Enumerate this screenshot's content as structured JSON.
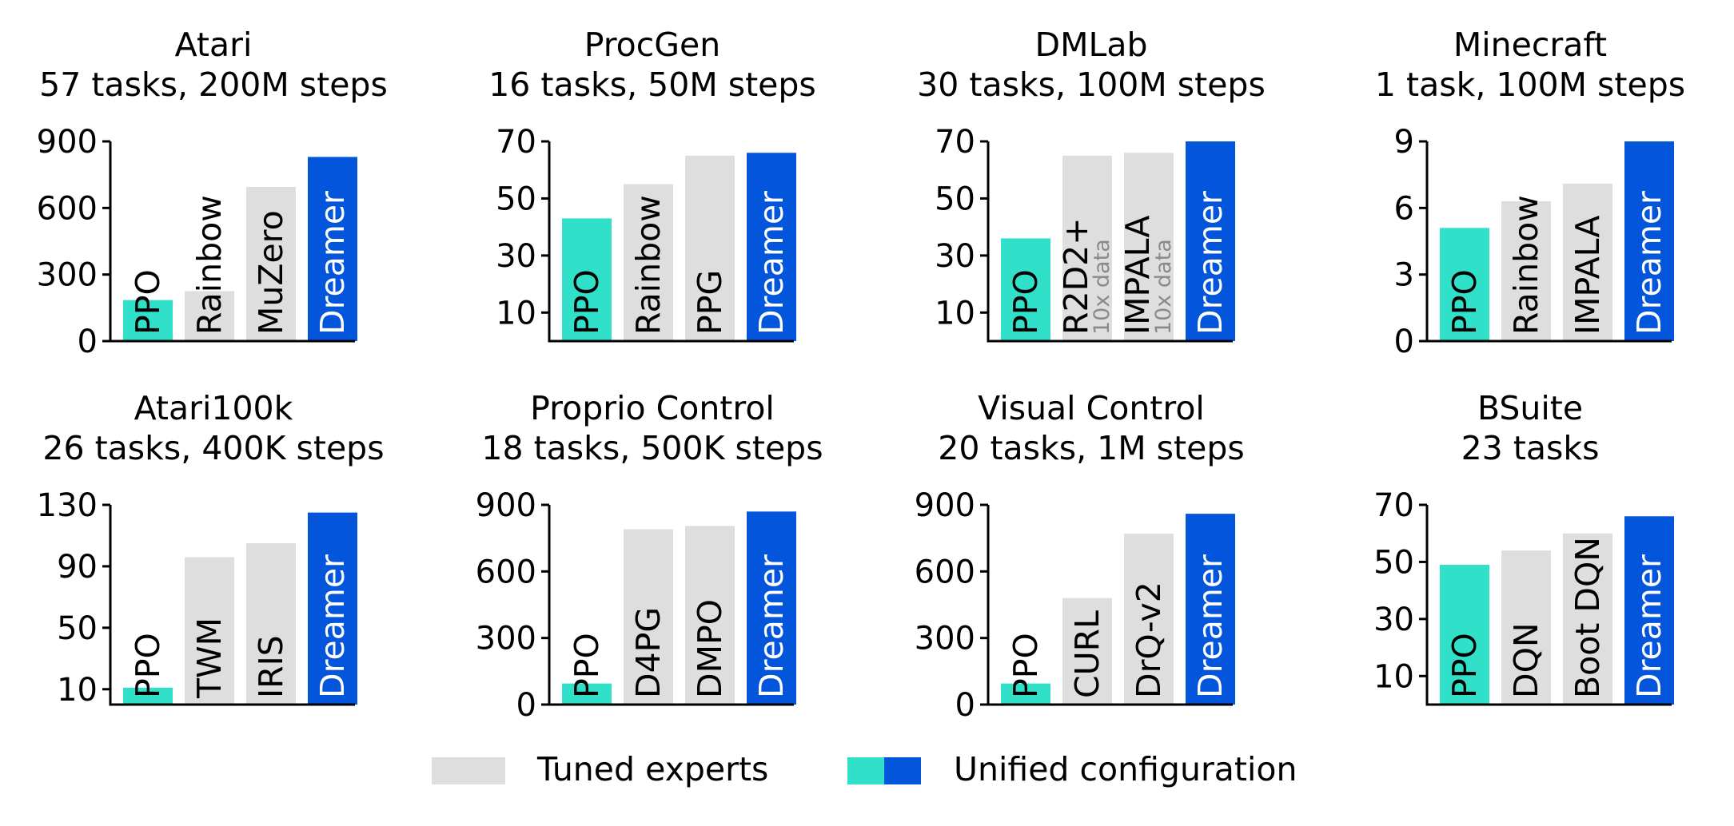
{
  "colors": {
    "ppo": "#30e0c8",
    "dreamer": "#0355db",
    "expert": "#dedede",
    "axis": "#000000",
    "label_dark": "#000000",
    "label_light": "#ffffff",
    "note": "#8a8a8a"
  },
  "chart_data": [
    {
      "type": "bar",
      "title": "Atari",
      "subtitle": "57 tasks, 200M steps",
      "ylim": [
        0,
        900
      ],
      "yticks": [
        0,
        300,
        600,
        900
      ],
      "categories": [
        "PPO",
        "Rainbow",
        "MuZero",
        "Dreamer"
      ],
      "values": [
        185,
        225,
        695,
        830
      ],
      "kinds": [
        "ppo",
        "expert",
        "expert",
        "dreamer"
      ],
      "notes": [
        "",
        "",
        "",
        ""
      ]
    },
    {
      "type": "bar",
      "title": "ProcGen",
      "subtitle": "16 tasks, 50M steps",
      "ylim": [
        0,
        70
      ],
      "yticks": [
        10,
        30,
        50,
        70
      ],
      "categories": [
        "PPO",
        "Rainbow",
        "PPG",
        "Dreamer"
      ],
      "values": [
        43,
        55,
        65,
        66
      ],
      "kinds": [
        "ppo",
        "expert",
        "expert",
        "dreamer"
      ],
      "notes": [
        "",
        "",
        "",
        ""
      ]
    },
    {
      "type": "bar",
      "title": "DMLab",
      "subtitle": "30 tasks, 100M steps",
      "ylim": [
        0,
        70
      ],
      "yticks": [
        10,
        30,
        50,
        70
      ],
      "categories": [
        "PPO",
        "R2D2+",
        "IMPALA",
        "Dreamer"
      ],
      "values": [
        36,
        65,
        66,
        70
      ],
      "kinds": [
        "ppo",
        "expert",
        "expert",
        "dreamer"
      ],
      "notes": [
        "",
        "10x data",
        "10x data",
        ""
      ]
    },
    {
      "type": "bar",
      "title": "Minecraft",
      "subtitle": "1 task, 100M steps",
      "ylim": [
        0,
        9
      ],
      "yticks": [
        0,
        3,
        6,
        9
      ],
      "categories": [
        "PPO",
        "Rainbow",
        "IMPALA",
        "Dreamer"
      ],
      "values": [
        5.1,
        6.3,
        7.1,
        9.0
      ],
      "kinds": [
        "ppo",
        "expert",
        "expert",
        "dreamer"
      ],
      "notes": [
        "",
        "",
        "",
        ""
      ]
    },
    {
      "type": "bar",
      "title": "Atari100k",
      "subtitle": "26 tasks, 400K steps",
      "ylim": [
        0,
        130
      ],
      "yticks": [
        10,
        50,
        90,
        130
      ],
      "categories": [
        "PPO",
        "TWM",
        "IRIS",
        "Dreamer"
      ],
      "values": [
        11,
        96,
        105,
        125
      ],
      "kinds": [
        "ppo",
        "expert",
        "expert",
        "dreamer"
      ],
      "notes": [
        "",
        "",
        "",
        ""
      ]
    },
    {
      "type": "bar",
      "title": "Proprio Control",
      "subtitle": "18 tasks, 500K steps",
      "ylim": [
        0,
        900
      ],
      "yticks": [
        0,
        300,
        600,
        900
      ],
      "categories": [
        "PPO",
        "D4PG",
        "DMPO",
        "Dreamer"
      ],
      "values": [
        95,
        790,
        805,
        870
      ],
      "kinds": [
        "ppo",
        "expert",
        "expert",
        "dreamer"
      ],
      "notes": [
        "",
        "",
        "",
        ""
      ]
    },
    {
      "type": "bar",
      "title": "Visual Control",
      "subtitle": "20 tasks, 1M steps",
      "ylim": [
        0,
        900
      ],
      "yticks": [
        0,
        300,
        600,
        900
      ],
      "categories": [
        "PPO",
        "CURL",
        "DrQ-v2",
        "Dreamer"
      ],
      "values": [
        95,
        480,
        770,
        860
      ],
      "kinds": [
        "ppo",
        "expert",
        "expert",
        "dreamer"
      ],
      "notes": [
        "",
        "",
        "",
        ""
      ]
    },
    {
      "type": "bar",
      "title": "BSuite",
      "subtitle": "23 tasks",
      "ylim": [
        0,
        70
      ],
      "yticks": [
        10,
        30,
        50,
        70
      ],
      "categories": [
        "PPO",
        "DQN",
        "Boot DQN",
        "Dreamer"
      ],
      "values": [
        49,
        54,
        60,
        66
      ],
      "kinds": [
        "ppo",
        "expert",
        "expert",
        "dreamer"
      ],
      "notes": [
        "",
        "",
        "",
        ""
      ]
    }
  ],
  "legend": {
    "placement": "bottom-center",
    "tuned_label": "Tuned experts",
    "unified_label": "Unified configuration"
  }
}
